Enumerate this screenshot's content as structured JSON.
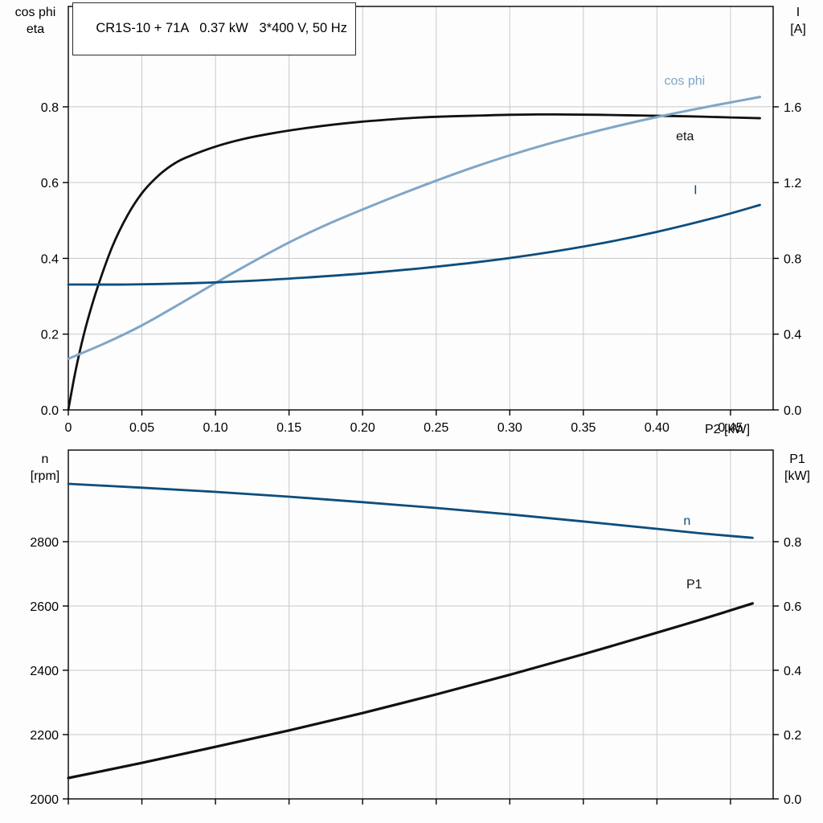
{
  "labels": {
    "title": "CR1S-10 + 71A   0.37 kW   3*400 V, 50 Hz",
    "top_left_line1": "cos phi",
    "top_left_line2": "eta",
    "top_right_line1": "I",
    "top_right_line2": "[A]",
    "bottom_left_line1": "n",
    "bottom_left_line2": "[rpm]",
    "bottom_right_line1": "P1",
    "bottom_right_line2": "[kW]",
    "x_axis": "P2 [kW]"
  },
  "colors": {
    "frame": "#000000",
    "grid": "#c9c9c9",
    "black": "#111111",
    "dark_blue": "#0d4d7d",
    "light_blue": "#7fa6c8"
  },
  "chart_data": [
    {
      "id": "top",
      "type": "line",
      "title": "CR1S-10 + 71A   0.37 kW   3*400 V, 50 Hz",
      "xlabel": "P2 [kW]",
      "left_ylabel": "cos phi / eta",
      "right_ylabel": "I [A]",
      "grid": true,
      "xlim": [
        0,
        0.479
      ],
      "left_ylim": [
        0,
        1.065
      ],
      "right_ylim": [
        0,
        2.13
      ],
      "x_ticks": [
        0,
        0.05,
        0.1,
        0.15,
        0.2,
        0.25,
        0.3,
        0.35,
        0.4,
        0.45
      ],
      "x_tick_labels": [
        "0",
        "0.05",
        "0.10",
        "0.15",
        "0.20",
        "0.25",
        "0.30",
        "0.35",
        "0.40",
        "0.45"
      ],
      "left_ticks": [
        0,
        0.2,
        0.4,
        0.6,
        0.8
      ],
      "left_tick_labels": [
        "0.0",
        "0.2",
        "0.4",
        "0.6",
        "0.8"
      ],
      "right_ticks": [
        0,
        0.4,
        0.8,
        1.2,
        1.6
      ],
      "right_tick_labels": [
        "0.0",
        "0.4",
        "0.8",
        "1.2",
        "1.6"
      ],
      "series": [
        {
          "name": "eta",
          "label": "eta",
          "axis": "left",
          "color": "black",
          "width": 2.8,
          "label_pos": [
            0.413,
            0.712
          ],
          "points": [
            [
              0,
              0
            ],
            [
              0.004,
              0.085
            ],
            [
              0.008,
              0.158
            ],
            [
              0.013,
              0.235
            ],
            [
              0.02,
              0.325
            ],
            [
              0.03,
              0.432
            ],
            [
              0.04,
              0.512
            ],
            [
              0.05,
              0.572
            ],
            [
              0.06,
              0.614
            ],
            [
              0.07,
              0.645
            ],
            [
              0.08,
              0.666
            ],
            [
              0.1,
              0.695
            ],
            [
              0.12,
              0.716
            ],
            [
              0.14,
              0.731
            ],
            [
              0.16,
              0.743
            ],
            [
              0.18,
              0.753
            ],
            [
              0.2,
              0.761
            ],
            [
              0.22,
              0.767
            ],
            [
              0.24,
              0.772
            ],
            [
              0.26,
              0.775
            ],
            [
              0.28,
              0.777
            ],
            [
              0.3,
              0.779
            ],
            [
              0.33,
              0.78
            ],
            [
              0.36,
              0.779
            ],
            [
              0.39,
              0.777
            ],
            [
              0.42,
              0.775
            ],
            [
              0.45,
              0.772
            ],
            [
              0.47,
              0.77
            ]
          ]
        },
        {
          "name": "cos phi",
          "label": "cos phi",
          "axis": "left",
          "color": "light_blue",
          "width": 3,
          "label_pos": [
            0.405,
            0.858
          ],
          "points": [
            [
              0,
              0.135
            ],
            [
              0.025,
              0.176
            ],
            [
              0.05,
              0.223
            ],
            [
              0.075,
              0.278
            ],
            [
              0.1,
              0.335
            ],
            [
              0.125,
              0.39
            ],
            [
              0.15,
              0.442
            ],
            [
              0.175,
              0.488
            ],
            [
              0.2,
              0.529
            ],
            [
              0.225,
              0.568
            ],
            [
              0.25,
              0.605
            ],
            [
              0.275,
              0.64
            ],
            [
              0.3,
              0.672
            ],
            [
              0.325,
              0.701
            ],
            [
              0.35,
              0.727
            ],
            [
              0.375,
              0.751
            ],
            [
              0.4,
              0.773
            ],
            [
              0.425,
              0.793
            ],
            [
              0.445,
              0.808
            ],
            [
              0.47,
              0.826
            ]
          ]
        },
        {
          "name": "I",
          "label": "I",
          "axis": "right",
          "color": "dark_blue",
          "width": 2.8,
          "label_pos": [
            0.425,
            1.14
          ],
          "points": [
            [
              0,
              0.662
            ],
            [
              0.04,
              0.662
            ],
            [
              0.08,
              0.668
            ],
            [
              0.12,
              0.68
            ],
            [
              0.16,
              0.698
            ],
            [
              0.2,
              0.72
            ],
            [
              0.24,
              0.748
            ],
            [
              0.28,
              0.782
            ],
            [
              0.32,
              0.824
            ],
            [
              0.36,
              0.876
            ],
            [
              0.4,
              0.94
            ],
            [
              0.44,
              1.016
            ],
            [
              0.47,
              1.082
            ]
          ]
        }
      ]
    },
    {
      "id": "bottom",
      "type": "line",
      "title": "",
      "xlabel": "P2 [kW]",
      "left_ylabel": "n [rpm]",
      "right_ylabel": "P1 [kW]",
      "grid": true,
      "xlim": [
        0,
        0.479
      ],
      "left_ylim": [
        2000,
        3085
      ],
      "right_ylim": [
        0,
        1.085
      ],
      "x_ticks": [
        0,
        0.05,
        0.1,
        0.15,
        0.2,
        0.25,
        0.3,
        0.35,
        0.4,
        0.45
      ],
      "x_tick_labels": null,
      "left_ticks": [
        2000,
        2200,
        2400,
        2600,
        2800
      ],
      "left_tick_labels": [
        "2000",
        "2200",
        "2400",
        "2600",
        "2800"
      ],
      "right_ticks": [
        0,
        0.2,
        0.4,
        0.6,
        0.8
      ],
      "right_tick_labels": [
        "0.0",
        "0.2",
        "0.4",
        "0.6",
        "0.8"
      ],
      "series": [
        {
          "name": "n",
          "label": "n",
          "axis": "left",
          "color": "dark_blue",
          "width": 2.8,
          "label_pos": [
            0.418,
            2852
          ],
          "points": [
            [
              0,
              2980
            ],
            [
              0.05,
              2968
            ],
            [
              0.1,
              2955
            ],
            [
              0.15,
              2940
            ],
            [
              0.2,
              2923
            ],
            [
              0.25,
              2905
            ],
            [
              0.3,
              2885
            ],
            [
              0.35,
              2863
            ],
            [
              0.4,
              2840
            ],
            [
              0.43,
              2826
            ],
            [
              0.465,
              2812
            ]
          ]
        },
        {
          "name": "P1",
          "label": "P1",
          "axis": "right",
          "color": "black",
          "width": 3.2,
          "label_pos": [
            0.42,
            0.655
          ],
          "points": [
            [
              0,
              0.065
            ],
            [
              0.05,
              0.112
            ],
            [
              0.1,
              0.162
            ],
            [
              0.15,
              0.213
            ],
            [
              0.2,
              0.267
            ],
            [
              0.25,
              0.325
            ],
            [
              0.3,
              0.386
            ],
            [
              0.35,
              0.45
            ],
            [
              0.4,
              0.517
            ],
            [
              0.43,
              0.558
            ],
            [
              0.465,
              0.608
            ]
          ]
        }
      ]
    }
  ]
}
